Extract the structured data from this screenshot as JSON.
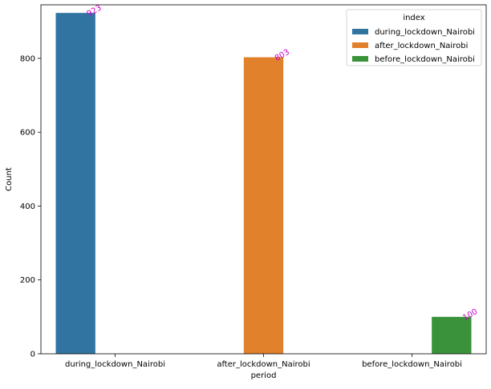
{
  "chart_data": {
    "type": "bar",
    "title": "",
    "xlabel": "period",
    "ylabel": "Count",
    "ylim": [
      0,
      945
    ],
    "yticks": [
      0,
      200,
      400,
      600,
      800
    ],
    "categories": [
      "during_lockdown_Nairobi",
      "after_lockdown_Nairobi",
      "before_lockdown_Nairobi"
    ],
    "legend": {
      "title": "index",
      "position": "top-right"
    },
    "grid": false,
    "series": [
      {
        "name": "during_lockdown_Nairobi",
        "color": "#3274a1",
        "values": [
          923,
          null,
          null
        ],
        "labels": [
          "923",
          "",
          ""
        ]
      },
      {
        "name": "after_lockdown_Nairobi",
        "color": "#e1812c",
        "values": [
          null,
          803,
          null
        ],
        "labels": [
          "",
          "803",
          ""
        ]
      },
      {
        "name": "before_lockdown_Nairobi",
        "color": "#3a923a",
        "values": [
          null,
          null,
          100
        ],
        "labels": [
          "",
          "",
          "100"
        ]
      }
    ],
    "label_color": "#cc00cc"
  }
}
